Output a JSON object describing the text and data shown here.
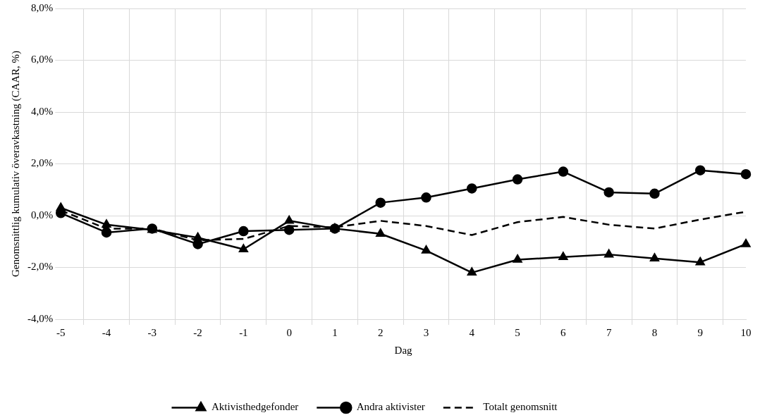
{
  "chart_data": {
    "type": "line",
    "xlabel": "Dag",
    "ylabel": "Genomsnittlig kumulativ överavkastning (CAAR, %)",
    "categories": [
      "-5",
      "-4",
      "-3",
      "-2",
      "-1",
      "0",
      "1",
      "2",
      "3",
      "4",
      "5",
      "6",
      "7",
      "8",
      "9",
      "10"
    ],
    "series": [
      {
        "name": "Aktivisthedgefonder",
        "color": "#000000",
        "marker": "triangle",
        "line_style": "solid",
        "values": [
          0.3,
          -0.35,
          -0.55,
          -0.85,
          -1.3,
          -0.2,
          -0.5,
          -0.7,
          -1.35,
          -2.2,
          -1.7,
          -1.6,
          -1.5,
          -1.65,
          -1.8,
          -1.1
        ]
      },
      {
        "name": "Andra aktivister",
        "color": "#000000",
        "marker": "circle",
        "line_style": "solid",
        "values": [
          0.1,
          -0.65,
          -0.5,
          -1.1,
          -0.6,
          -0.55,
          -0.5,
          0.5,
          0.7,
          1.05,
          1.4,
          1.7,
          0.9,
          0.85,
          1.75,
          1.6
        ]
      },
      {
        "name": "Totalt genomsnitt",
        "color": "#000000",
        "marker": "none",
        "line_style": "dashed",
        "values": [
          0.2,
          -0.5,
          -0.5,
          -0.95,
          -0.9,
          -0.4,
          -0.45,
          -0.2,
          -0.4,
          -0.75,
          -0.25,
          -0.05,
          -0.35,
          -0.5,
          -0.15,
          0.15
        ]
      }
    ],
    "ylim": [
      -4,
      8
    ],
    "yticks": [
      {
        "value": -4,
        "label": "-4,0%"
      },
      {
        "value": -2,
        "label": "-2,0%"
      },
      {
        "value": 0,
        "label": "0,0%"
      },
      {
        "value": 2,
        "label": "2,0%"
      },
      {
        "value": 4,
        "label": "4,0%"
      },
      {
        "value": 6,
        "label": "6,0%"
      },
      {
        "value": 8,
        "label": "8,0%"
      }
    ],
    "grid": true,
    "legend": "bottom"
  }
}
